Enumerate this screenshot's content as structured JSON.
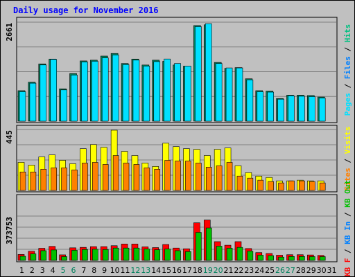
{
  "chart_data": {
    "title": "Daily usage for November 2016",
    "type": "bar",
    "categories": [
      "1",
      "2",
      "3",
      "4",
      "5",
      "6",
      "7",
      "8",
      "9",
      "10",
      "11",
      "12",
      "13",
      "14",
      "15",
      "16",
      "17",
      "18",
      "19",
      "20",
      "21",
      "22",
      "23",
      "24",
      "25",
      "26",
      "27",
      "28",
      "29",
      "30",
      "31"
    ],
    "weekend_days": [
      "5",
      "6",
      "12",
      "13",
      "19",
      "20",
      "26",
      "27"
    ],
    "panels": [
      {
        "id": "top",
        "scale_max_label": "2661",
        "ymax": 2661,
        "right_label": [
          {
            "text": "Pages",
            "color": "#00e0ff"
          },
          {
            "text": " / ",
            "color": "#000000"
          },
          {
            "text": "Files",
            "color": "#0080ff"
          },
          {
            "text": " / ",
            "color": "#000000"
          },
          {
            "text": "Hits",
            "color": "#00c080"
          }
        ],
        "series": [
          {
            "name": "Hits",
            "color": "#00805c",
            "values": [
              820,
              1050,
              1540,
              1670,
              870,
              1280,
              1620,
              1640,
              1750,
              1820,
              1550,
              1670,
              1510,
              1640,
              1610,
              1510,
              1480,
              2570,
              2590,
              1580,
              1420,
              1440,
              1140,
              820,
              810,
              610,
              700,
              700,
              690,
              650,
              0
            ]
          },
          {
            "name": "Files",
            "color": "#0080ff",
            "values": [
              0,
              0,
              0,
              0,
              0,
              0,
              0,
              0,
              0,
              0,
              0,
              0,
              0,
              0,
              0,
              0,
              0,
              0,
              0,
              0,
              0,
              0,
              0,
              0,
              0,
              0,
              0,
              0,
              0,
              0,
              0
            ]
          },
          {
            "name": "Pages",
            "color": "#00e0ff",
            "values": [
              810,
              1040,
              1530,
              1680,
              860,
              1260,
              1610,
              1630,
              1720,
              1800,
              1540,
              1660,
              1500,
              1620,
              1690,
              1570,
              1500,
              2560,
              2640,
              1570,
              1450,
              1450,
              1130,
              810,
              800,
              610,
              700,
              690,
              680,
              640,
              0
            ]
          }
        ]
      },
      {
        "id": "middle",
        "scale_max_label": "445",
        "ymax": 445,
        "right_label": [
          {
            "text": "Sites",
            "color": "#ff8000"
          },
          {
            "text": " / ",
            "color": "#000000"
          },
          {
            "text": "Visits",
            "color": "#ffff00"
          }
        ],
        "series": [
          {
            "name": "Visits",
            "color": "#ffff00",
            "values": [
              205,
              185,
              245,
              260,
              220,
              195,
              305,
              335,
              315,
              440,
              285,
              255,
              200,
              175,
              345,
              320,
              305,
              300,
              255,
              300,
              310,
              180,
              130,
              105,
              95,
              70,
              70,
              75,
              70,
              70,
              0
            ]
          },
          {
            "name": "Sites",
            "color": "#ff8000",
            "values": [
              135,
              135,
              155,
              165,
              165,
              150,
              200,
              205,
              190,
              255,
              200,
              190,
              165,
              155,
              220,
              215,
              215,
              200,
              170,
              180,
              205,
              105,
              90,
              75,
              65,
              55,
              70,
              70,
              65,
              55,
              0
            ]
          }
        ]
      },
      {
        "id": "bottom",
        "scale_max_label": "373753",
        "ymax": 373753,
        "right_label": [
          {
            "text": "KB F",
            "color": "#ff0000"
          },
          {
            "text": " / ",
            "color": "#000000"
          },
          {
            "text": "KB In",
            "color": "#0080ff"
          },
          {
            "text": " / ",
            "color": "#000000"
          },
          {
            "text": "KB Out",
            "color": "#00c000"
          }
        ],
        "series": [
          {
            "name": "KB F",
            "color": "#ff0000",
            "values": [
              50000,
              77000,
              102000,
              118000,
              47000,
              106000,
              110000,
              116000,
              116000,
              124000,
              138000,
              138000,
              114000,
              108000,
              134000,
              104000,
              98000,
              317000,
              340000,
              158000,
              128000,
              158000,
              100000,
              66000,
              58000,
              44000,
              48000,
              48000,
              46000,
              42000,
              0
            ]
          },
          {
            "name": "KB In",
            "color": "#0080ff",
            "values": [
              0,
              0,
              0,
              0,
              0,
              0,
              0,
              0,
              0,
              0,
              0,
              0,
              0,
              0,
              0,
              0,
              0,
              0,
              0,
              0,
              0,
              0,
              0,
              0,
              0,
              0,
              0,
              0,
              0,
              0,
              0
            ]
          },
          {
            "name": "KB Out",
            "color": "#00c000",
            "values": [
              35000,
              55000,
              82000,
              88000,
              32000,
              85000,
              92000,
              94000,
              92000,
              104000,
              104000,
              104000,
              96000,
              90000,
              96000,
              82000,
              74000,
              236000,
              274000,
              120000,
              103000,
              110000,
              78000,
              44000,
              40000,
              28000,
              33000,
              33000,
              32000,
              32000,
              0
            ]
          }
        ]
      }
    ]
  }
}
